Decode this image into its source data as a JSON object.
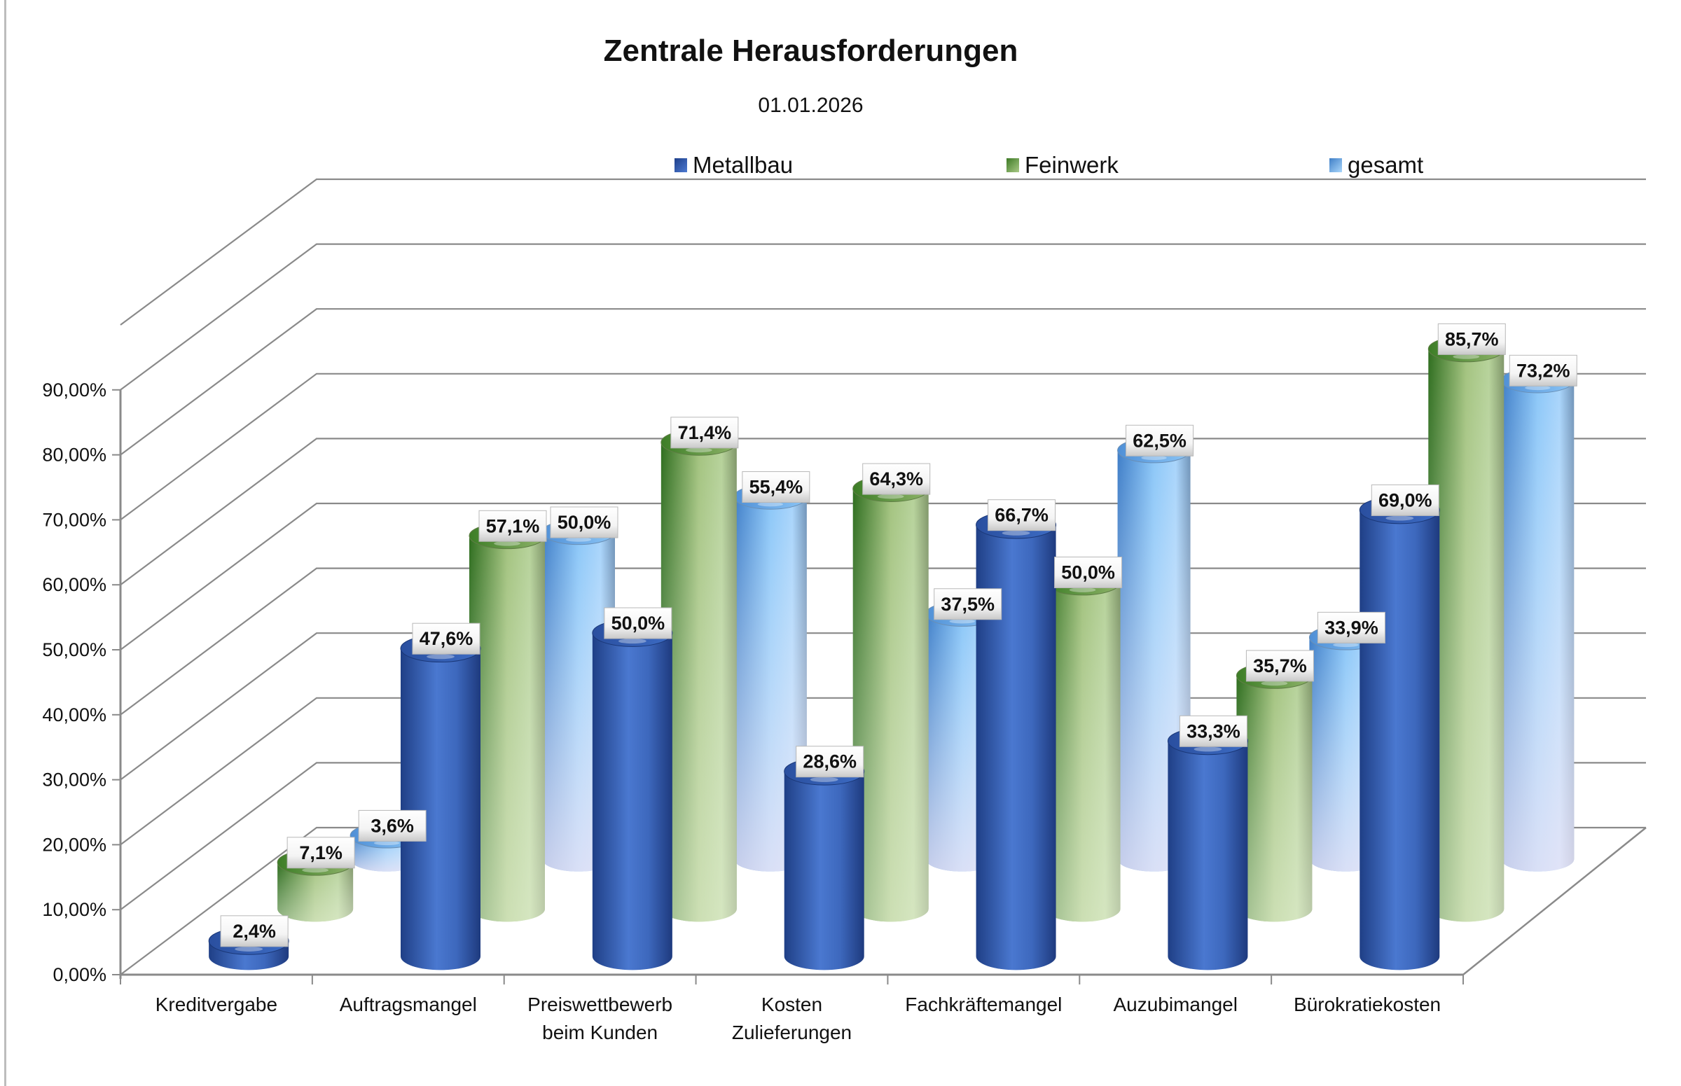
{
  "chart_data": {
    "type": "bar",
    "style": "3d-cylinder",
    "title": "Zentrale Herausforderungen",
    "subtitle": "01.01.2026",
    "xlabel": "",
    "ylabel": "",
    "ylim": [
      0,
      90
    ],
    "y_ticks": [
      "0,00%",
      "10,00%",
      "20,00%",
      "30,00%",
      "40,00%",
      "50,00%",
      "60,00%",
      "70,00%",
      "80,00%",
      "90,00%"
    ],
    "grid": true,
    "legend_position": "top",
    "categories": [
      [
        "Kreditvergabe"
      ],
      [
        "Auftragsmangel"
      ],
      [
        "Preiswettbewerb",
        "beim Kunden"
      ],
      [
        "Kosten",
        "Zulieferungen"
      ],
      [
        "Fachkräftemangel"
      ],
      [
        "Auzubimangel"
      ],
      [
        "Bürokratiekosten"
      ]
    ],
    "series": [
      {
        "name": "Metallbau",
        "color": "#3a66c0",
        "values": [
          2.4,
          47.6,
          50.0,
          28.6,
          66.7,
          33.3,
          69.0
        ],
        "labels": [
          "2,4%",
          "47,6%",
          "50,0%",
          "28,6%",
          "66,7%",
          "33,3%",
          "69,0%"
        ]
      },
      {
        "name": "Feinwerk",
        "color": "#7fa85a",
        "values": [
          7.1,
          57.1,
          71.4,
          64.3,
          50.0,
          35.7,
          85.7
        ],
        "labels": [
          "7,1%",
          "57,1%",
          "71,4%",
          "64,3%",
          "50,0%",
          "35,7%",
          "85,7%"
        ]
      },
      {
        "name": "gesamt",
        "color": "#7ab8ee",
        "values": [
          3.6,
          50.0,
          55.4,
          37.5,
          62.5,
          33.9,
          73.2
        ],
        "labels": [
          "3,6%",
          "50,0%",
          "55,4%",
          "37,5%",
          "62,5%",
          "33,9%",
          "73,2%"
        ]
      }
    ]
  }
}
